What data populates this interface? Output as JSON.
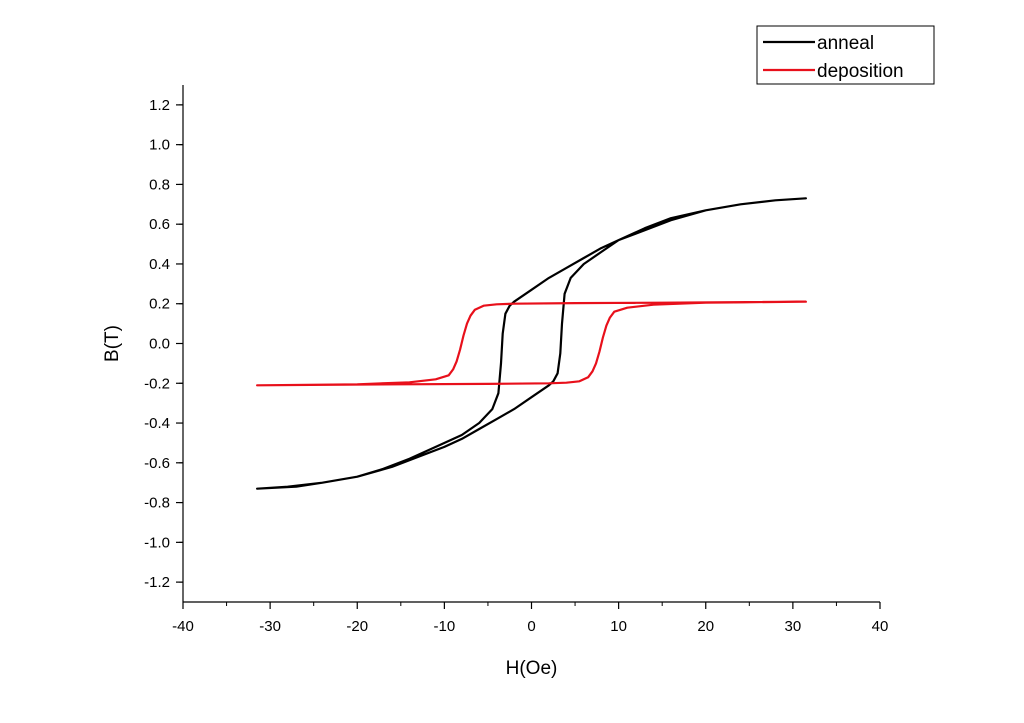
{
  "chart_data": {
    "type": "line",
    "xlabel": "H(Oe)",
    "ylabel": "B(T)",
    "xlim": [
      -40,
      40
    ],
    "ylim": [
      -1.3,
      1.3
    ],
    "x_ticks": [
      -40,
      -30,
      -20,
      -10,
      0,
      10,
      20,
      30,
      40
    ],
    "x_tick_labels": [
      "-40",
      "-30",
      "-20",
      "-10",
      "0",
      "10",
      "20",
      "30",
      "40"
    ],
    "y_ticks": [
      -1.2,
      -1.0,
      -0.8,
      -0.6,
      -0.4,
      -0.2,
      0.0,
      0.2,
      0.4,
      0.6,
      0.8,
      1.0,
      1.2
    ],
    "y_tick_labels": [
      "-1.2",
      "-1.0",
      "-0.8",
      "-0.6",
      "-0.4",
      "-0.2",
      "0.0",
      "0.2",
      "0.4",
      "0.6",
      "0.8",
      "1.0",
      "1.2"
    ],
    "grid": false,
    "legend_position": "top-right",
    "series": [
      {
        "name": "anneal",
        "color": "#000000",
        "x": [
          -31.5,
          -27,
          -24,
          -20,
          -17,
          -14,
          -11,
          -8,
          -6,
          -4.5,
          -3.8,
          -3.5,
          -3.3,
          -3,
          -2.5,
          -2,
          0,
          2,
          4,
          6,
          8,
          10,
          13,
          16,
          20,
          24,
          28,
          31.5,
          28,
          24,
          20,
          16,
          13,
          10,
          8,
          6,
          4.5,
          3.8,
          3.5,
          3.3,
          3,
          2.5,
          2,
          0,
          -2,
          -4,
          -6,
          -8,
          -10,
          -13,
          -16,
          -20,
          -24,
          -28,
          -31.5
        ],
        "y": [
          -0.73,
          -0.72,
          -0.7,
          -0.67,
          -0.63,
          -0.58,
          -0.52,
          -0.46,
          -0.4,
          -0.33,
          -0.25,
          -0.1,
          0.05,
          0.15,
          0.19,
          0.21,
          0.27,
          0.33,
          0.38,
          0.43,
          0.48,
          0.52,
          0.57,
          0.62,
          0.67,
          0.7,
          0.72,
          0.73,
          0.72,
          0.7,
          0.67,
          0.63,
          0.58,
          0.52,
          0.46,
          0.4,
          0.33,
          0.25,
          0.1,
          -0.05,
          -0.15,
          -0.19,
          -0.21,
          -0.27,
          -0.33,
          -0.38,
          -0.43,
          -0.48,
          -0.52,
          -0.57,
          -0.62,
          -0.67,
          -0.7,
          -0.72,
          -0.73
        ]
      },
      {
        "name": "deposition",
        "color": "#e8101b",
        "x": [
          -31.5,
          -20,
          -14,
          -11,
          -9.5,
          -9,
          -8.6,
          -8.2,
          -7.8,
          -7.4,
          -7,
          -6.5,
          -5.5,
          -4,
          -2,
          5,
          15,
          31.5,
          20,
          14,
          11,
          9.5,
          9,
          8.6,
          8.2,
          7.8,
          7.4,
          7,
          6.5,
          5.5,
          4,
          2,
          -5,
          -15,
          -31.5
        ],
        "y": [
          -0.21,
          -0.205,
          -0.195,
          -0.18,
          -0.16,
          -0.13,
          -0.09,
          -0.03,
          0.04,
          0.1,
          0.14,
          0.17,
          0.19,
          0.197,
          0.2,
          0.203,
          0.205,
          0.21,
          0.205,
          0.195,
          0.18,
          0.16,
          0.13,
          0.09,
          0.03,
          -0.04,
          -0.1,
          -0.14,
          -0.17,
          -0.19,
          -0.197,
          -0.2,
          -0.203,
          -0.205,
          -0.21
        ]
      }
    ]
  }
}
